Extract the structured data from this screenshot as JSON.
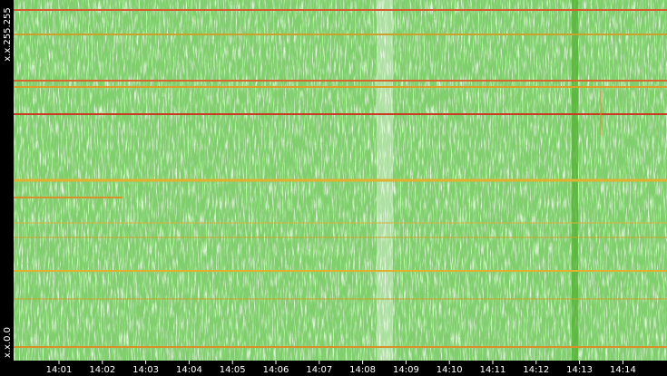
{
  "chart_data": {
    "type": "heatmap",
    "x": [
      "14:01",
      "14:02",
      "14:03",
      "14:04",
      "14:05",
      "14:06",
      "14:07",
      "14:08",
      "14:09",
      "14:10",
      "14:11",
      "14:12",
      "14:13",
      "14:14"
    ],
    "y_labels": [
      "x.x.0.0",
      "x.x.255.255"
    ]
  }
}
